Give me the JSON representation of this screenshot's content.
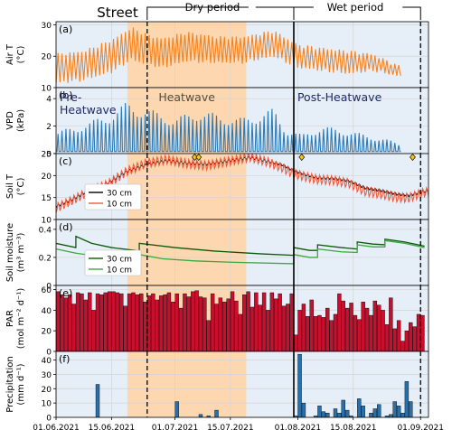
{
  "chart_data": {
    "type": "line",
    "x_axis": {
      "start_date": "2021-06-01",
      "end_date": "2021-09-03",
      "tick_labels": [
        "01.06.2021",
        "15.06.2021",
        "01.07.2021",
        "15.07.2021",
        "01.08.2021",
        "15.08.2021",
        "01.09.2021"
      ],
      "tick_dates": [
        "2021-06-01",
        "2021-06-15",
        "2021-07-01",
        "2021-07-15",
        "2021-08-01",
        "2021-08-15",
        "2021-09-01"
      ]
    },
    "top_labels": {
      "street": "Street",
      "dry_period": "Dry period",
      "wet_period": "Wet period"
    },
    "periods": {
      "pre_heatwave": {
        "label": "Pre-\nHeatwave",
        "start": "2021-06-01",
        "end": "2021-06-19"
      },
      "heatwave": {
        "label": "Heatwave",
        "start": "2021-06-19",
        "end": "2021-07-19",
        "color": "#fdd7b0"
      },
      "post_heatwave": {
        "label": "Post-Heatwave",
        "start": "2021-07-19",
        "end": "2021-09-03"
      },
      "background_color": "#e6eef7"
    },
    "markers": {
      "street_dashed": "2021-06-24",
      "dry_wet_boundary": "2021-07-31",
      "end_dashed": "2021-09-01",
      "diamond_dates": [
        "2021-07-06",
        "2021-07-07",
        "2021-08-02",
        "2021-08-30"
      ],
      "diamond_color": "#f5c518"
    },
    "panels": [
      {
        "id": "a",
        "panel_label": "(a)",
        "ylabel": [
          "Air T",
          "(°C)"
        ],
        "ylim": [
          10,
          31
        ],
        "yticks": [
          10,
          20,
          30
        ],
        "series": [
          {
            "color": "#f58220",
            "kind": "diurnal",
            "start": "2021-06-01",
            "end": "2021-08-27",
            "mean": [
              [
                0,
                16
              ],
              [
                7,
                17
              ],
              [
                14,
                20
              ],
              [
                19,
                24
              ],
              [
                23,
                22
              ],
              [
                27,
                21
              ],
              [
                33,
                23
              ],
              [
                41,
                22
              ],
              [
                47,
                22
              ],
              [
                55,
                24
              ],
              [
                61,
                20
              ],
              [
                67,
                19
              ],
              [
                74,
                18
              ],
              [
                80,
                18
              ],
              [
                87,
                15
              ]
            ],
            "amp": [
              [
                0,
                9
              ],
              [
                7,
                9
              ],
              [
                14,
                10
              ],
              [
                19,
                10
              ],
              [
                25,
                9
              ],
              [
                33,
                9
              ],
              [
                41,
                8
              ],
              [
                47,
                8
              ],
              [
                55,
                8
              ],
              [
                61,
                7
              ],
              [
                67,
                7
              ],
              [
                74,
                7
              ],
              [
                80,
                5
              ],
              [
                87,
                3
              ]
            ]
          }
        ]
      },
      {
        "id": "b",
        "panel_label": "(b)",
        "ylabel": [
          "VPD",
          "(kPa)"
        ],
        "ylim": [
          0,
          4.8
        ],
        "yticks": [
          0,
          2,
          4
        ],
        "series": [
          {
            "color": "#2b7ab9",
            "kind": "vpd",
            "start": "2021-06-01",
            "end": "2021-08-27",
            "peak": [
              [
                0,
                1.6
              ],
              [
                5,
                2.0
              ],
              [
                9,
                2.4
              ],
              [
                14,
                3.0
              ],
              [
                18,
                3.8
              ],
              [
                22,
                3.4
              ],
              [
                26,
                3.0
              ],
              [
                30,
                2.6
              ],
              [
                36,
                3.2
              ],
              [
                42,
                2.8
              ],
              [
                47,
                2.6
              ],
              [
                55,
                3.3
              ],
              [
                58,
                1.8
              ],
              [
                62,
                1.4
              ],
              [
                67,
                2.0
              ],
              [
                72,
                1.8
              ],
              [
                78,
                1.4
              ],
              [
                84,
                1.0
              ],
              [
                87,
                0.7
              ]
            ],
            "base": 0.15
          }
        ]
      },
      {
        "id": "c",
        "panel_label": "(c)",
        "ylabel": [
          "Soil T",
          "(°C)"
        ],
        "ylim": [
          10,
          25
        ],
        "yticks": [
          10,
          15,
          20,
          25
        ],
        "legend": [
          {
            "name": "30 cm",
            "color": "#000000"
          },
          {
            "name": "10 cm",
            "color": "#f05a3c"
          }
        ],
        "series": [
          {
            "name": "30 cm",
            "color": "#2a0a0a",
            "kind": "smooth",
            "amp": 0.3,
            "start": "2021-06-01",
            "end": "2021-09-03",
            "points": [
              [
                0,
                13
              ],
              [
                4,
                14.5
              ],
              [
                8,
                16.5
              ],
              [
                13,
                18.2
              ],
              [
                18,
                21
              ],
              [
                23,
                22.5
              ],
              [
                28,
                23.4
              ],
              [
                33,
                22.8
              ],
              [
                38,
                22.6
              ],
              [
                44,
                23.4
              ],
              [
                49,
                24.1
              ],
              [
                54,
                23.1
              ],
              [
                57,
                22.5
              ],
              [
                60,
                21.1
              ],
              [
                63,
                20.2
              ],
              [
                66,
                19.5
              ],
              [
                70,
                19.4
              ],
              [
                74,
                18.8
              ],
              [
                78,
                17.2
              ],
              [
                82,
                16.6
              ],
              [
                86,
                15.8
              ],
              [
                89,
                15.5
              ],
              [
                93,
                16.4
              ]
            ]
          },
          {
            "name": "10 cm",
            "color": "#f05a3c",
            "kind": "smooth",
            "amp": 1.1,
            "start": "2021-06-01",
            "end": "2021-09-03",
            "points": [
              [
                0,
                12.6
              ],
              [
                4,
                14.3
              ],
              [
                8,
                16.2
              ],
              [
                13,
                18.0
              ],
              [
                18,
                21.0
              ],
              [
                23,
                22.8
              ],
              [
                28,
                23.6
              ],
              [
                33,
                22.7
              ],
              [
                38,
                22.3
              ],
              [
                44,
                23.3
              ],
              [
                49,
                24.2
              ],
              [
                54,
                22.9
              ],
              [
                57,
                21.8
              ],
              [
                60,
                20.4
              ],
              [
                63,
                19.7
              ],
              [
                66,
                19.1
              ],
              [
                70,
                18.9
              ],
              [
                74,
                18.2
              ],
              [
                78,
                16.4
              ],
              [
                82,
                15.8
              ],
              [
                86,
                15.0
              ],
              [
                89,
                14.9
              ],
              [
                93,
                16.2
              ]
            ]
          }
        ]
      },
      {
        "id": "d",
        "panel_label": "(d)",
        "ylabel": [
          "Soil moisture",
          "(m³ m⁻³)"
        ],
        "ylim": [
          0,
          0.47
        ],
        "yticks": [
          0,
          0.2,
          0.4
        ],
        "legend": [
          {
            "name": "30 cm",
            "color": "#0a5a0a"
          },
          {
            "name": "10 cm",
            "color": "#3da83d"
          }
        ],
        "series": [
          {
            "name": "30 cm",
            "color": "#0a5a0a",
            "kind": "steps",
            "start": "2021-06-01",
            "end": "2021-09-03",
            "points": [
              [
                0,
                0.3
              ],
              [
                5,
                0.27
              ],
              [
                5.01,
                0.35
              ],
              [
                9,
                0.3
              ],
              [
                14,
                0.27
              ],
              [
                20,
                0.25
              ],
              [
                21,
                0.24
              ],
              [
                21.01,
                0.3
              ],
              [
                30,
                0.27
              ],
              [
                40,
                0.245
              ],
              [
                52,
                0.225
              ],
              [
                59.9,
                0.215
              ],
              [
                60,
                0.215
              ],
              [
                60.01,
                0.27
              ],
              [
                64,
                0.25
              ],
              [
                66,
                0.25
              ],
              [
                66.01,
                0.29
              ],
              [
                72,
                0.27
              ],
              [
                76,
                0.26
              ],
              [
                76.01,
                0.31
              ],
              [
                80,
                0.295
              ],
              [
                83,
                0.29
              ],
              [
                83.01,
                0.33
              ],
              [
                88,
                0.31
              ],
              [
                93,
                0.28
              ]
            ]
          },
          {
            "name": "10 cm",
            "color": "#3da83d",
            "kind": "steps",
            "start": "2021-06-01",
            "end": "2021-09-03",
            "points": [
              [
                0,
                0.26
              ],
              [
                5,
                0.23
              ],
              [
                10,
                0.21
              ],
              [
                15,
                0.19
              ],
              [
                20,
                0.18
              ],
              [
                21,
                0.18
              ],
              [
                21.01,
                0.22
              ],
              [
                27,
                0.19
              ],
              [
                35,
                0.175
              ],
              [
                45,
                0.165
              ],
              [
                59.9,
                0.155
              ],
              [
                60,
                0.155
              ],
              [
                60.01,
                0.22
              ],
              [
                64,
                0.2
              ],
              [
                66,
                0.2
              ],
              [
                66.01,
                0.26
              ],
              [
                72,
                0.24
              ],
              [
                76,
                0.235
              ],
              [
                76.01,
                0.29
              ],
              [
                80,
                0.275
              ],
              [
                83,
                0.275
              ],
              [
                83.01,
                0.32
              ],
              [
                88,
                0.3
              ],
              [
                93,
                0.27
              ]
            ]
          }
        ]
      },
      {
        "id": "e",
        "panel_label": "(e)",
        "ylabel": [
          "PAR",
          "(mol m⁻² d⁻¹)"
        ],
        "ylim": [
          0,
          64
        ],
        "yticks": [
          0,
          20,
          40,
          60
        ],
        "bar_color": "#c8102e",
        "bar_start": "2021-06-01",
        "values": [
          58,
          55,
          52,
          55,
          46,
          57,
          56,
          50,
          57,
          40,
          56,
          55,
          57,
          58,
          58,
          57,
          56,
          44,
          56,
          57,
          55,
          56,
          48,
          54,
          56,
          50,
          54,
          55,
          57,
          48,
          56,
          42,
          56,
          53,
          58,
          59,
          53,
          52,
          30,
          56,
          46,
          52,
          48,
          51,
          58,
          49,
          36,
          55,
          58,
          43,
          57,
          45,
          57,
          40,
          57,
          51,
          56,
          44,
          46,
          56,
          16,
          40,
          46,
          34,
          50,
          34,
          35,
          33,
          42,
          30,
          36,
          56,
          49,
          42,
          47,
          35,
          31,
          48,
          42,
          35,
          49,
          45,
          40,
          26,
          52,
          22,
          30,
          10,
          20,
          28,
          24,
          36,
          35
        ]
      },
      {
        "id": "f",
        "panel_label": "(f)",
        "ylabel": [
          "Precipitation",
          "(mm d⁻¹)"
        ],
        "ylim": [
          0,
          46
        ],
        "yticks": [
          0,
          10,
          20,
          30,
          40
        ],
        "bar_color": "#2a6fa8",
        "bar_start": "2021-06-01",
        "values": [
          0,
          0,
          0,
          0,
          0,
          0,
          0,
          0,
          0,
          0,
          23,
          0,
          0,
          0,
          0,
          0,
          0,
          0,
          0,
          0,
          0,
          0,
          0,
          0,
          0,
          0,
          0,
          0,
          0,
          0,
          11,
          0,
          0,
          0,
          0,
          0,
          2,
          0,
          1,
          0,
          5,
          0,
          0,
          0,
          0,
          0,
          0,
          0,
          0,
          0,
          0,
          0,
          0,
          0,
          0,
          0,
          0,
          0,
          0,
          0,
          1,
          44,
          10,
          0,
          0,
          1,
          8,
          4,
          3,
          0,
          6,
          3,
          12,
          5,
          1,
          0,
          13,
          8,
          0,
          3,
          6,
          9,
          0,
          1,
          2,
          11,
          8,
          3,
          25,
          11,
          0,
          0,
          0
        ]
      }
    ],
    "grid": true,
    "colors": {
      "pre_post_bg": "#e6eef7",
      "heatwave_bg": "#fdd7b0"
    }
  }
}
